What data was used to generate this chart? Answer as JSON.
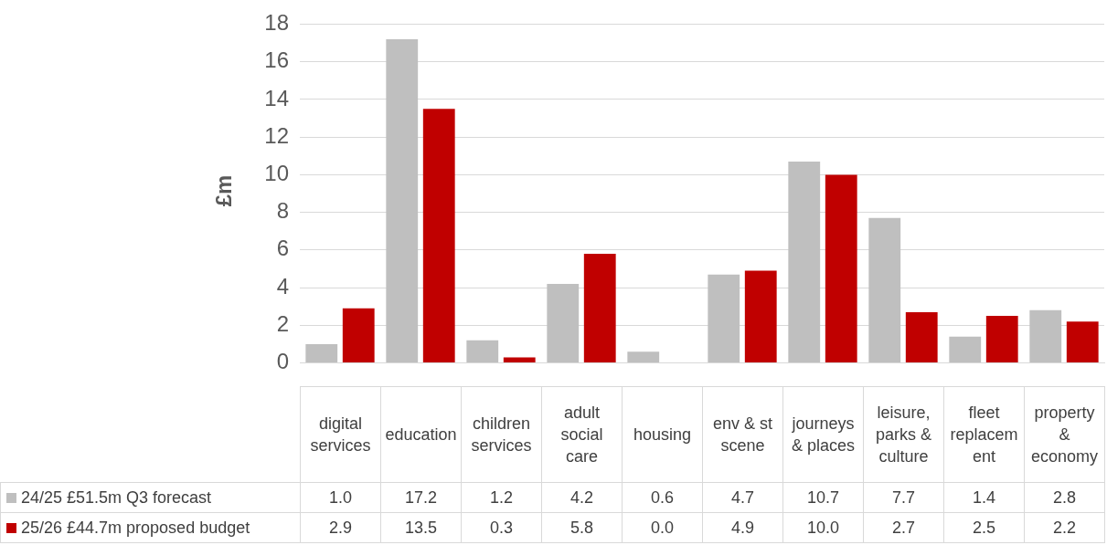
{
  "chart_data": {
    "type": "bar",
    "ylabel": "£m",
    "categories": [
      "digital services",
      "education",
      "children services",
      "adult social care",
      "housing",
      "env & st scene",
      "journeys & places",
      "leisure, parks & culture",
      "fleet replacement",
      "property & economy"
    ],
    "series": [
      {
        "name": "24/25 £51.5m Q3 forecast",
        "color": "#bfbfbf",
        "values": [
          1.0,
          17.2,
          1.2,
          4.2,
          0.6,
          4.7,
          10.7,
          7.7,
          1.4,
          2.8
        ],
        "value_labels": [
          "1.0",
          "17.2",
          "1.2",
          "4.2",
          "0.6",
          "4.7",
          "10.7",
          "7.7",
          "1.4",
          "2.8"
        ]
      },
      {
        "name": "25/26 £44.7m proposed budget",
        "color": "#c00000",
        "values": [
          2.9,
          13.5,
          0.3,
          5.8,
          0.0,
          4.9,
          10.0,
          2.7,
          2.5,
          2.2
        ],
        "value_labels": [
          "2.9",
          "13.5",
          "0.3",
          "5.8",
          "0.0",
          "4.9",
          "10.0",
          "2.7",
          "2.5",
          "2.2"
        ]
      }
    ],
    "ylim": [
      0,
      18
    ],
    "yticks": [
      0,
      2,
      4,
      6,
      8,
      10,
      12,
      14,
      16,
      18
    ],
    "grid": "y",
    "legend": "bottom left"
  }
}
